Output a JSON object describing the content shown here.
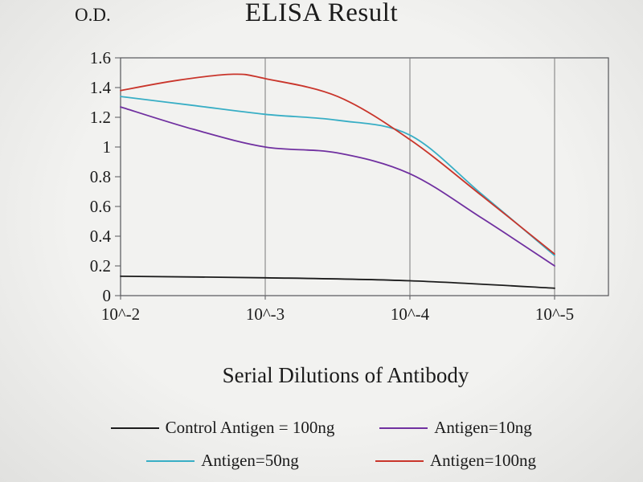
{
  "chart_data": {
    "type": "line",
    "title": "ELISA Result",
    "ylabel": "O.D.",
    "xlabel": "Serial Dilutions of Antibody",
    "categories": [
      "10^-2",
      "10^-3",
      "10^-4",
      "10^-5"
    ],
    "y_ticks": [
      0,
      0.2,
      0.4,
      0.6,
      0.8,
      1,
      1.2,
      1.4,
      1.6
    ],
    "y_tick_labels": [
      "0",
      "0.2",
      "0.4",
      "0.6",
      "0.8",
      "1",
      "1.2",
      "1.4",
      "1.6"
    ],
    "ylim": [
      0,
      1.6
    ],
    "grid": "vertical-only",
    "legend_position": "bottom",
    "axis_color": "#55565a",
    "grid_color": "#7a7a7a",
    "series": [
      {
        "name": "Control Antigen = 100ng",
        "color": "#1c1c1c",
        "values": [
          0.13,
          0.12,
          0.1,
          0.05
        ],
        "points": [
          [
            0,
            0.13
          ],
          [
            1,
            0.12
          ],
          [
            2,
            0.1
          ],
          [
            3,
            0.05
          ]
        ]
      },
      {
        "name": "Antigen=10ng",
        "color": "#7030a0",
        "values": [
          1.27,
          1.0,
          0.82,
          0.2
        ],
        "points": [
          [
            0,
            1.27
          ],
          [
            0.5,
            1.12
          ],
          [
            1,
            1.0
          ],
          [
            1.5,
            0.96
          ],
          [
            2,
            0.82
          ],
          [
            2.5,
            0.52
          ],
          [
            3,
            0.2
          ]
        ]
      },
      {
        "name": "Antigen=50ng",
        "color": "#38aec5",
        "values": [
          1.34,
          1.22,
          1.08,
          0.27
        ],
        "points": [
          [
            0,
            1.34
          ],
          [
            0.5,
            1.28
          ],
          [
            1,
            1.22
          ],
          [
            1.5,
            1.18
          ],
          [
            2,
            1.08
          ],
          [
            2.5,
            0.68
          ],
          [
            3,
            0.27
          ]
        ]
      },
      {
        "name": "Antigen=100ng",
        "color": "#c9352b",
        "values": [
          1.38,
          1.46,
          1.05,
          0.28
        ],
        "points": [
          [
            0,
            1.38
          ],
          [
            0.4,
            1.45
          ],
          [
            0.78,
            1.49
          ],
          [
            1,
            1.46
          ],
          [
            1.5,
            1.34
          ],
          [
            2,
            1.05
          ],
          [
            2.5,
            0.67
          ],
          [
            3,
            0.28
          ]
        ]
      }
    ]
  }
}
